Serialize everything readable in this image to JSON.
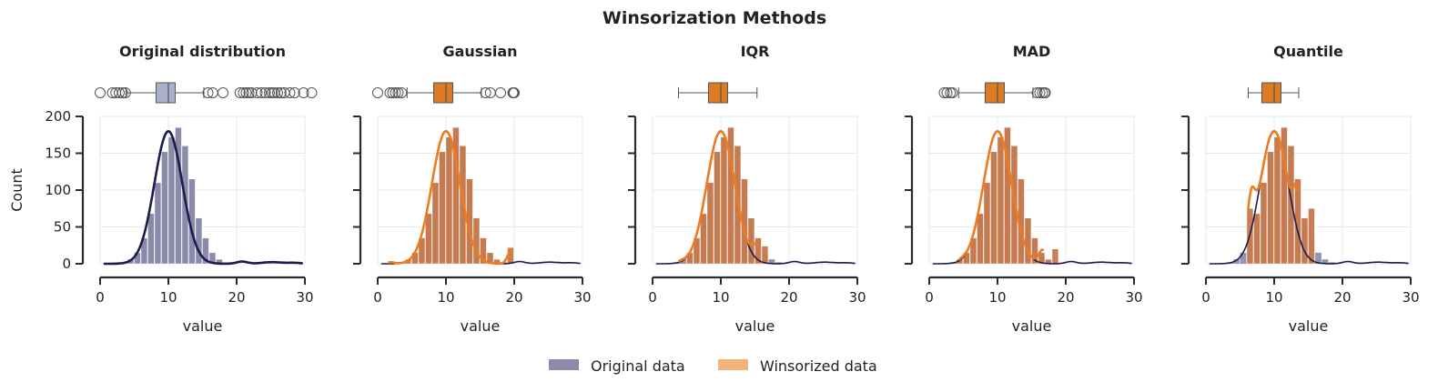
{
  "figure": {
    "suptitle": "Winsorization Methods",
    "legend": {
      "items": [
        {
          "label": "Original data",
          "color": "#8b8aa8"
        },
        {
          "label": "Winsorized data",
          "color": "#f2b27a"
        }
      ],
      "placement": "bottom-center"
    },
    "colors": {
      "orig_fill": "#8b8aa8",
      "orig_kde": "#1d1a4f",
      "wins_fill": "#c8794a",
      "wins_kde": "#ee7b1d",
      "orig_box": "#a7b1c9",
      "wins_box": "#dd7a24",
      "axis": "#2b2b2b",
      "grid": "#e8e8e8"
    }
  },
  "chart_data": [
    {
      "type": "histogram",
      "title": "Original distribution",
      "xlabel": "value",
      "ylabel": "Count",
      "xlim": [
        0,
        30
      ],
      "ylim": [
        0,
        200
      ],
      "xticks": [
        "0",
        "10",
        "20",
        "30"
      ],
      "yticks": [
        "0",
        "50",
        "100",
        "150",
        "200"
      ],
      "grid": true,
      "bin_width": 1,
      "bins_start": 3,
      "counts": [
        2,
        6,
        15,
        35,
        68,
        110,
        152,
        172,
        185,
        160,
        115,
        62,
        35,
        15,
        6,
        2
      ],
      "boxplot": {
        "q1": 8.2,
        "median": 10,
        "q3": 11,
        "whisker_low": 3.8,
        "whisker_high": 15.2,
        "outliers": [
          0,
          1.8,
          2.3,
          2.8,
          3.3,
          3.7,
          15.8,
          16.5,
          18,
          20.5,
          21,
          21.4,
          21.8,
          22.2,
          23,
          23.6,
          24.2,
          24.8,
          25.2,
          25.5,
          26,
          26.5,
          27,
          27.8,
          28.5,
          29.8,
          31
        ]
      }
    },
    {
      "type": "histogram",
      "title": "Gaussian",
      "xlabel": "value",
      "xlim": [
        0,
        30
      ],
      "ylim": [
        0,
        200
      ],
      "xticks": [
        "0",
        "10",
        "20",
        "30"
      ],
      "grid": true,
      "bin_width": 1,
      "bins_start": 4,
      "counts": [
        6,
        15,
        35,
        68,
        110,
        152,
        172,
        185,
        160,
        115,
        62,
        35,
        15,
        6,
        2,
        22
      ],
      "boxplot": {
        "q1": 8.2,
        "median": 10,
        "q3": 11,
        "whisker_low": 4.3,
        "whisker_high": 15.2,
        "outliers": [
          0,
          1.8,
          2.2,
          2.6,
          3,
          3.5,
          15.8,
          16.5,
          18,
          19.8,
          19.9,
          20
        ]
      }
    },
    {
      "type": "histogram",
      "title": "IQR",
      "xlabel": "value",
      "xlim": [
        0,
        30
      ],
      "ylim": [
        0,
        200
      ],
      "xticks": [
        "0",
        "10",
        "20",
        "30"
      ],
      "grid": true,
      "bin_width": 1,
      "bins_start": 5,
      "counts": [
        15,
        35,
        68,
        110,
        152,
        172,
        185,
        160,
        115,
        62,
        35,
        24
      ],
      "boxplot": {
        "q1": 8.2,
        "median": 10,
        "q3": 11,
        "whisker_low": 3.8,
        "whisker_high": 15.3,
        "outliers": []
      }
    },
    {
      "type": "histogram",
      "title": "MAD",
      "xlabel": "value",
      "xlim": [
        0,
        30
      ],
      "ylim": [
        0,
        200
      ],
      "xticks": [
        "0",
        "10",
        "20",
        "30"
      ],
      "grid": true,
      "bin_width": 1,
      "bins_start": 4,
      "counts": [
        6,
        15,
        35,
        68,
        110,
        152,
        172,
        185,
        160,
        115,
        62,
        35,
        15,
        6,
        20
      ],
      "boxplot": {
        "q1": 8.2,
        "median": 10,
        "q3": 11,
        "whisker_low": 4.3,
        "whisker_high": 15.2,
        "outliers": [
          2.2,
          2.6,
          3.1,
          3.4,
          15.8,
          16.2,
          16.6,
          16.9,
          17
        ]
      }
    },
    {
      "type": "histogram",
      "title": "Quantile",
      "xlabel": "value",
      "xlim": [
        0,
        30
      ],
      "ylim": [
        0,
        200
      ],
      "xticks": [
        "0",
        "10",
        "20",
        "30"
      ],
      "grid": true,
      "bin_width": 1,
      "bins_start": 6,
      "counts": [
        75,
        68,
        110,
        152,
        172,
        185,
        160,
        115,
        62,
        75
      ],
      "boxplot": {
        "q1": 8.2,
        "median": 10,
        "q3": 11,
        "whisker_low": 6.2,
        "whisker_high": 13.6,
        "outliers": []
      }
    }
  ]
}
